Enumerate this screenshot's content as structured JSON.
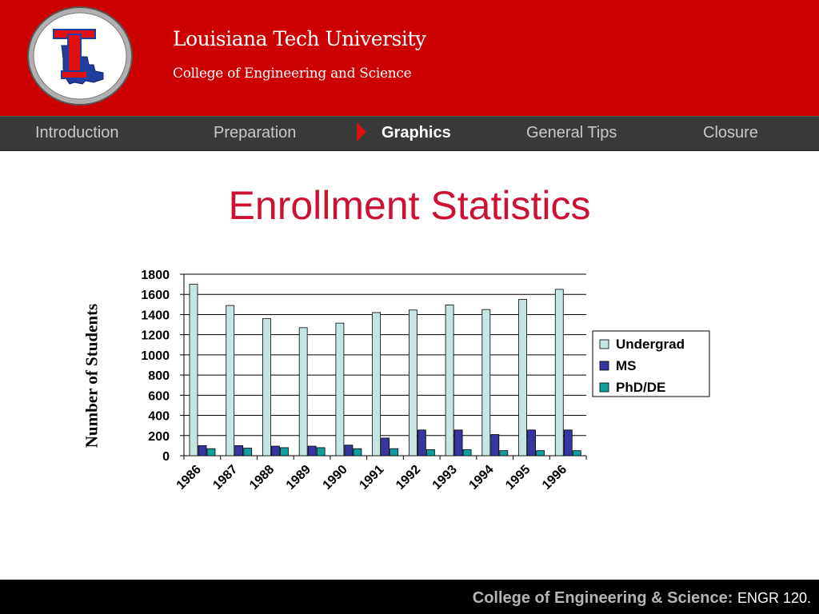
{
  "header": {
    "university": "Louisiana Tech University",
    "college": "College of Engineering and Science"
  },
  "nav": {
    "items": [
      "Introduction",
      "Preparation",
      "Graphics",
      "General Tips",
      "Closure"
    ],
    "active_index": 2
  },
  "slide": {
    "title": "Enrollment Statistics"
  },
  "footer": {
    "label": "College of Engineering & Science:",
    "course": "ENGR 120."
  },
  "colors": {
    "header_red": "#cc0000",
    "title_red": "#cc1133",
    "undergrad": "#c6e6e6",
    "ms": "#3636a0",
    "phd": "#109d9d"
  },
  "chart_data": {
    "type": "bar",
    "title": "",
    "xlabel": "",
    "ylabel": "Number of Students",
    "ylim": [
      0,
      1800
    ],
    "yticks": [
      0,
      200,
      400,
      600,
      800,
      1000,
      1200,
      1400,
      1600,
      1800
    ],
    "categories": [
      "1986",
      "1987",
      "1988",
      "1989",
      "1990",
      "1991",
      "1992",
      "1993",
      "1994",
      "1995",
      "1996"
    ],
    "series": [
      {
        "name": "Undergrad",
        "values": [
          1700,
          1490,
          1360,
          1270,
          1315,
          1420,
          1445,
          1495,
          1450,
          1550,
          1650
        ]
      },
      {
        "name": "MS",
        "values": [
          100,
          100,
          95,
          95,
          105,
          175,
          255,
          255,
          210,
          255,
          255
        ]
      },
      {
        "name": "PhD/DE",
        "values": [
          70,
          75,
          80,
          80,
          70,
          70,
          60,
          60,
          50,
          50,
          50
        ]
      }
    ],
    "legend": "right",
    "grid": true
  }
}
